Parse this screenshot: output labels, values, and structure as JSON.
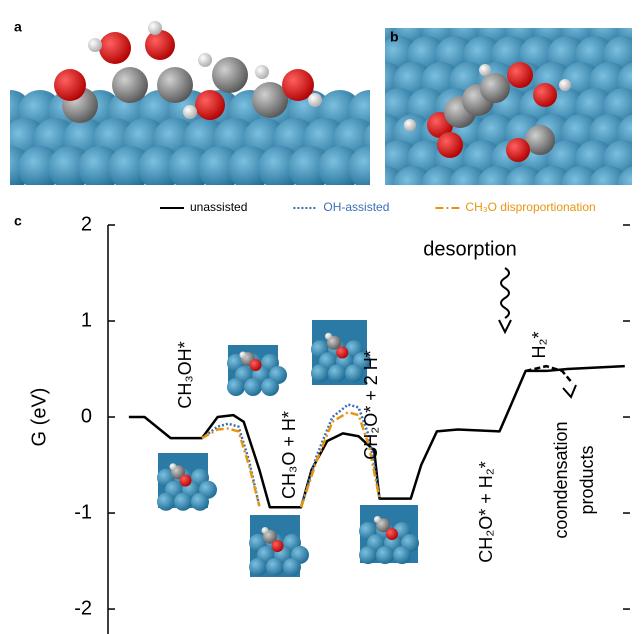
{
  "panel_labels": [
    "a",
    "b",
    "c"
  ],
  "chart_data": {
    "type": "line",
    "y_label": "G (eV)",
    "xlim": [
      0,
      100
    ],
    "ylim": [
      -2.26,
      2
    ],
    "yticks": [
      2,
      1,
      0,
      -1,
      -2
    ],
    "series": [
      {
        "name": "unassisted",
        "color": "#000000",
        "dash": "solid",
        "x": [
          4,
          7,
          12,
          18,
          21,
          24,
          26,
          29,
          31,
          37,
          39,
          42,
          45,
          48,
          51,
          52,
          58,
          60,
          63,
          67,
          75,
          77,
          80,
          84,
          88,
          99
        ],
        "values": [
          0,
          0,
          -0.22,
          -0.22,
          0,
          0.02,
          -0.05,
          -0.55,
          -0.94,
          -0.94,
          -0.55,
          -0.25,
          -0.17,
          -0.2,
          -0.35,
          -0.85,
          -0.85,
          -0.5,
          -0.15,
          -0.13,
          -0.15,
          0.1,
          0.48,
          0.48,
          0.5,
          0.53
        ]
      },
      {
        "name": "OH-assisted",
        "color": "#3a6fb5",
        "dash": "dotted",
        "x": [
          18,
          21,
          23,
          25,
          27,
          29,
          null,
          37,
          40,
          43,
          46,
          48,
          50,
          51,
          52
        ],
        "values": [
          -0.22,
          -0.1,
          -0.07,
          -0.1,
          -0.45,
          -0.93,
          null,
          -0.94,
          -0.4,
          0,
          0.13,
          0.1,
          -0.2,
          -0.5,
          -0.85
        ]
      },
      {
        "name": "CH₃O disproportionation",
        "color": "#e8950e",
        "dash": "dashdot",
        "x": [
          18,
          21,
          23,
          25,
          27,
          29,
          null,
          37,
          40,
          43,
          46,
          48,
          50,
          52
        ],
        "values": [
          -0.22,
          -0.13,
          -0.12,
          -0.15,
          -0.5,
          -0.93,
          null,
          -0.94,
          -0.45,
          -0.05,
          0.05,
          0.02,
          -0.3,
          -0.85
        ]
      },
      {
        "color": "#000000",
        "dash": "dashed",
        "x": [
          80,
          84,
          87,
          89
        ],
        "values": [
          0.48,
          0.53,
          0.48,
          0.35
        ]
      }
    ],
    "annotations": [
      {
        "text": "CH₃OH*"
      },
      {
        "text": "CH₃O + H*"
      },
      {
        "text": "CH₂O* + 2 H*"
      },
      {
        "text": "CH₂O* + H₂*"
      },
      {
        "text": "H₂*"
      },
      {
        "text": "desorption"
      },
      {
        "lines": [
          "coondensation",
          "products"
        ]
      }
    ]
  }
}
